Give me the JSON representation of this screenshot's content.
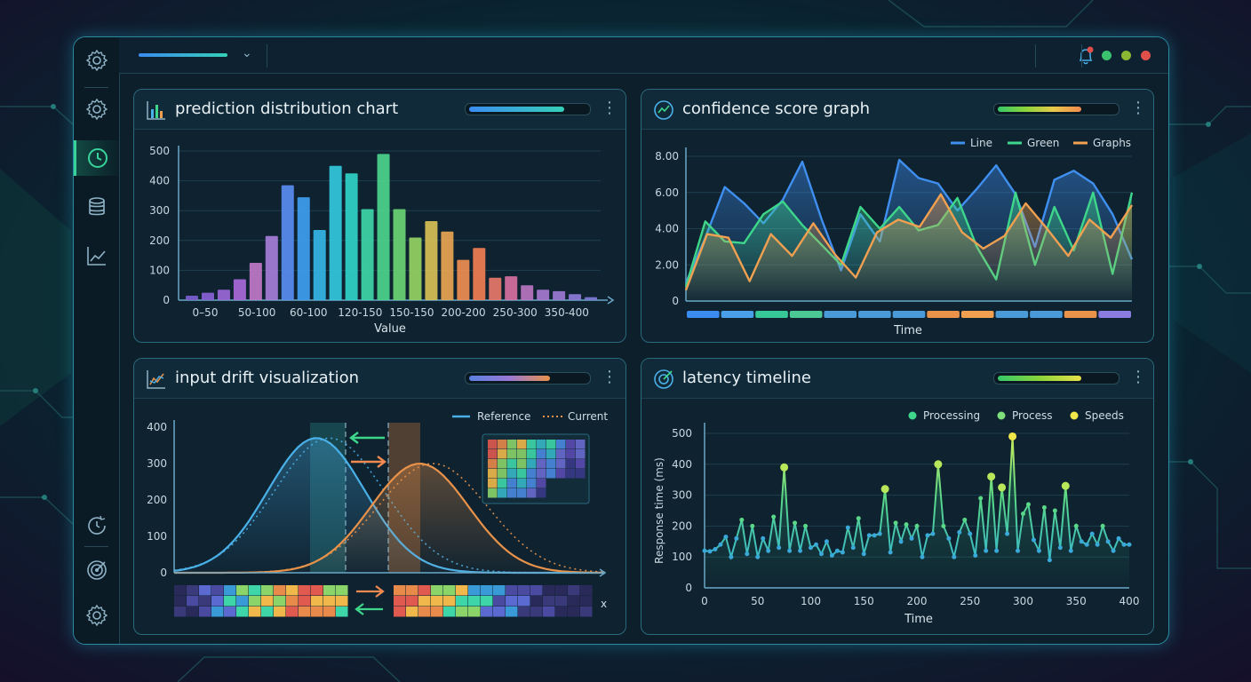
{
  "colors": {
    "accent": "#38d39a",
    "panel_border": "#2b6a7c",
    "background": "#081a22"
  },
  "sidebar": {
    "items": [
      {
        "icon": "gear-icon"
      },
      {
        "icon": "settings-gear-icon"
      },
      {
        "icon": "clock-icon",
        "active": true
      },
      {
        "icon": "database-icon"
      },
      {
        "icon": "trend-chart-icon"
      },
      {
        "icon": "history-clock-icon"
      },
      {
        "icon": "target-icon"
      },
      {
        "icon": "settings-icon"
      }
    ]
  },
  "topbar": {
    "notification_icon": "bell-icon",
    "window_dots": [
      "#3ac26e",
      "#8ab832",
      "#e0504a"
    ]
  },
  "panels": {
    "prediction": {
      "title": "prediction distribution chart",
      "progress": 0.82
    },
    "confidence": {
      "title": "confidence score graph",
      "progress": 0.72
    },
    "drift": {
      "title": "input drift visualization",
      "progress": 0.7
    },
    "latency": {
      "title": "latency timeline",
      "progress": 0.72
    }
  },
  "chart_data": [
    {
      "type": "bar",
      "title": "prediction distribution chart",
      "xlabel": "Value",
      "ylabel": "",
      "ylim": [
        0,
        500
      ],
      "yticks": [
        0,
        100,
        200,
        300,
        400,
        500
      ],
      "tick_labels": [
        "0–50",
        "50-100",
        "60-100",
        "120-150",
        "150-150",
        "200-200",
        "250-300",
        "350-400"
      ],
      "values": [
        15,
        25,
        35,
        70,
        125,
        215,
        385,
        345,
        235,
        450,
        425,
        305,
        490,
        305,
        210,
        265,
        230,
        135,
        175,
        75,
        80,
        50,
        35,
        30,
        20,
        10
      ],
      "colors": [
        "#7a5fd0",
        "#8a62d6",
        "#9a68d8",
        "#a86ad8",
        "#c07ac8",
        "#a67ed8",
        "#5a8df2",
        "#3f9ef0",
        "#35b6e6",
        "#33c8de",
        "#30d2c8",
        "#3ed6a8",
        "#4cd48c",
        "#6ad474",
        "#94d264",
        "#d8c057",
        "#e8a552",
        "#ef8e52",
        "#f07e52",
        "#e6786a",
        "#d670a0",
        "#b874c0",
        "#a67ad0",
        "#9a78d4",
        "#8c7cd8",
        "#7e7ad6"
      ]
    },
    {
      "type": "area",
      "title": "confidence score graph",
      "xlabel": "Time",
      "ylabel": "",
      "ylim": [
        0,
        8
      ],
      "yticks": [
        "0",
        "2.00",
        "4.00",
        "6.00",
        "8.00"
      ],
      "legend": [
        "Line",
        "Green",
        "Graphs"
      ],
      "legend_position": "top-right",
      "series": [
        {
          "name": "Line",
          "color": "#3f8ff0",
          "values": [
            1.0,
            3.5,
            6.3,
            5.4,
            4.3,
            5.6,
            7.7,
            4.5,
            1.7,
            4.8,
            3.3,
            7.8,
            6.8,
            6.5,
            5.0,
            6.2,
            7.5,
            5.9,
            3.0,
            6.7,
            7.2,
            6.5,
            4.8,
            2.3
          ]
        },
        {
          "name": "Green",
          "color": "#3ed68a",
          "values": [
            0.8,
            4.4,
            3.3,
            3.2,
            4.8,
            5.5,
            4.2,
            3.1,
            2.0,
            5.2,
            4.0,
            5.2,
            3.9,
            4.2,
            5.7,
            3.0,
            1.2,
            6.0,
            2.0,
            5.2,
            2.8,
            6.0,
            1.5,
            6.0
          ]
        },
        {
          "name": "Graphs",
          "color": "#f0a050",
          "values": [
            0.6,
            3.7,
            3.5,
            1.1,
            3.7,
            2.5,
            4.3,
            2.6,
            1.3,
            3.8,
            4.5,
            4.1,
            5.9,
            3.8,
            2.9,
            3.6,
            5.4,
            4.0,
            2.5,
            4.5,
            3.5,
            5.3
          ]
        }
      ],
      "timeline_strip": [
        "#3b8cf0",
        "#4aa0e8",
        "#36c896",
        "#4cc894",
        "#4a9ad8",
        "#4a9ad8",
        "#4a9ad8",
        "#e8924a",
        "#f0a050",
        "#4a9ad8",
        "#4a9ad8",
        "#e8924a",
        "#8a7ce0"
      ]
    },
    {
      "type": "line",
      "title": "input drift visualization",
      "xlabel": "x",
      "ylabel": "",
      "ylim": [
        0,
        400
      ],
      "yticks": [
        0,
        100,
        200,
        300,
        400
      ],
      "legend": [
        "Reference",
        "Current"
      ],
      "legend_position": "top-right",
      "series": [
        {
          "name": "Reference",
          "style": "solid",
          "color": "#4ab0e8",
          "peak": 370,
          "center": 0.33
        },
        {
          "name": "Current",
          "style": "dotted",
          "color": "#e8924a",
          "peak": 300,
          "center": 0.57
        }
      ]
    },
    {
      "type": "scatter",
      "title": "latency timeline",
      "xlabel": "Time",
      "ylabel": "Response time (ms)",
      "xlim": [
        0,
        400
      ],
      "ylim": [
        0,
        500
      ],
      "xticks": [
        0,
        50,
        100,
        150,
        200,
        250,
        300,
        350,
        400
      ],
      "yticks": [
        0,
        100,
        200,
        300,
        400,
        500
      ],
      "legend": [
        "Processing",
        "Process",
        "Speeds"
      ],
      "legend_position": "top-right",
      "legend_colors": [
        "#3ed68a",
        "#7ee07a",
        "#f0e84a"
      ],
      "x": [
        0,
        5,
        10,
        15,
        20,
        25,
        30,
        35,
        40,
        45,
        50,
        55,
        60,
        65,
        70,
        75,
        80,
        85,
        90,
        95,
        100,
        105,
        110,
        115,
        120,
        125,
        130,
        135,
        140,
        145,
        150,
        155,
        160,
        165,
        170,
        175,
        180,
        185,
        190,
        195,
        200,
        205,
        210,
        215,
        220,
        225,
        230,
        235,
        240,
        245,
        250,
        255,
        260,
        265,
        270,
        275,
        280,
        285,
        290,
        295,
        300,
        305,
        310,
        315,
        320,
        325,
        330,
        335,
        340,
        345,
        350,
        355,
        360,
        365,
        370,
        375,
        380,
        385,
        390,
        395,
        400
      ],
      "y": [
        120,
        118,
        125,
        140,
        165,
        100,
        160,
        220,
        110,
        200,
        100,
        160,
        120,
        230,
        130,
        390,
        120,
        210,
        120,
        200,
        130,
        140,
        110,
        150,
        105,
        120,
        115,
        195,
        130,
        225,
        110,
        170,
        170,
        175,
        320,
        115,
        210,
        150,
        205,
        160,
        200,
        100,
        170,
        175,
        400,
        200,
        160,
        100,
        180,
        220,
        175,
        105,
        290,
        120,
        360,
        120,
        325,
        175,
        490,
        120,
        240,
        270,
        155,
        120,
        260,
        90,
        250,
        130,
        330,
        120,
        200,
        150,
        140,
        175,
        140,
        200,
        150,
        120,
        160,
        140,
        140
      ]
    }
  ]
}
